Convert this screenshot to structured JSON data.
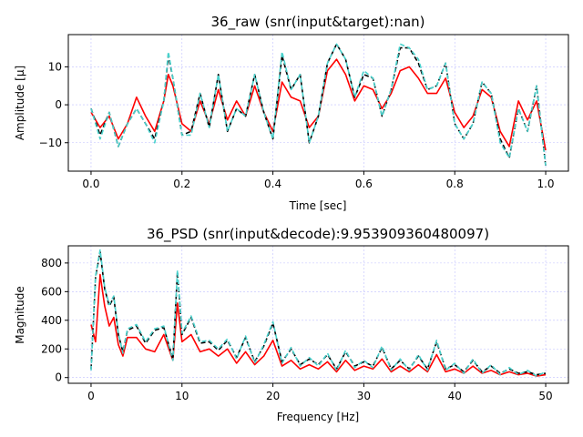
{
  "chart_data": [
    {
      "type": "line",
      "title": "36_raw (snr(input&target):nan)",
      "xlabel": "Time [sec]",
      "ylabel": "Amplitude [μ]",
      "xlim": [
        -0.05,
        1.05
      ],
      "ylim": [
        -17.5,
        18.5
      ],
      "xticks": [
        0.0,
        0.2,
        0.4,
        0.6,
        0.8,
        1.0
      ],
      "xtick_labels": [
        "0.0",
        "0.2",
        "0.4",
        "0.6",
        "0.8",
        "1.0"
      ],
      "yticks": [
        -10,
        0,
        10
      ],
      "ytick_labels": [
        "−10",
        "0",
        "10"
      ],
      "grid": true,
      "series": [
        {
          "color": "#ff0000",
          "style": "solid",
          "x": [
            0.0,
            0.02,
            0.04,
            0.06,
            0.08,
            0.1,
            0.12,
            0.14,
            0.16,
            0.17,
            0.18,
            0.2,
            0.22,
            0.24,
            0.26,
            0.28,
            0.3,
            0.32,
            0.34,
            0.36,
            0.38,
            0.4,
            0.42,
            0.44,
            0.46,
            0.48,
            0.5,
            0.52,
            0.54,
            0.56,
            0.58,
            0.6,
            0.62,
            0.64,
            0.66,
            0.68,
            0.7,
            0.72,
            0.74,
            0.76,
            0.78,
            0.8,
            0.82,
            0.84,
            0.86,
            0.88,
            0.9,
            0.92,
            0.94,
            0.96,
            0.98,
            1.0
          ],
          "y": [
            -2,
            -6,
            -3,
            -9,
            -5,
            2,
            -3,
            -7,
            1,
            8,
            5,
            -5,
            -7,
            1,
            -5,
            4,
            -4,
            1,
            -3,
            5,
            -2,
            -7,
            6,
            2,
            1,
            -6,
            -3,
            9,
            12,
            8,
            1,
            5,
            4,
            -1,
            3,
            9,
            10,
            7,
            3,
            3,
            7,
            -2,
            -6,
            -3,
            4,
            2,
            -7,
            -11,
            1,
            -4,
            1,
            -12
          ]
        },
        {
          "color": "#000000",
          "style": "dashed",
          "x": [
            0.0,
            0.02,
            0.04,
            0.06,
            0.08,
            0.1,
            0.12,
            0.14,
            0.16,
            0.17,
            0.18,
            0.2,
            0.22,
            0.24,
            0.26,
            0.28,
            0.3,
            0.32,
            0.34,
            0.36,
            0.38,
            0.4,
            0.42,
            0.44,
            0.46,
            0.48,
            0.5,
            0.52,
            0.54,
            0.56,
            0.58,
            0.6,
            0.62,
            0.64,
            0.66,
            0.68,
            0.7,
            0.72,
            0.74,
            0.76,
            0.78,
            0.8,
            0.82,
            0.84,
            0.86,
            0.88,
            0.9,
            0.92,
            0.94,
            0.96,
            0.98,
            1.0
          ],
          "y": [
            -1,
            -8,
            -2,
            -11,
            -5,
            -1,
            -5,
            -9,
            1,
            13,
            7,
            -8,
            -7,
            3,
            -6,
            8,
            -7,
            -1,
            -3,
            8,
            -2,
            -9,
            13,
            4,
            8,
            -10,
            -3,
            11,
            16,
            12,
            2,
            8,
            7,
            -3,
            4,
            15,
            15,
            11,
            4,
            5,
            11,
            -5,
            -9,
            -5,
            6,
            3,
            -9,
            -14,
            -1,
            -7,
            5,
            -16
          ]
        },
        {
          "color": "#48d1cc",
          "style": "dashed",
          "x": [
            0.0,
            0.02,
            0.04,
            0.06,
            0.08,
            0.1,
            0.12,
            0.14,
            0.16,
            0.17,
            0.18,
            0.2,
            0.22,
            0.24,
            0.26,
            0.28,
            0.3,
            0.32,
            0.34,
            0.36,
            0.38,
            0.4,
            0.42,
            0.44,
            0.46,
            0.48,
            0.5,
            0.52,
            0.54,
            0.56,
            0.58,
            0.6,
            0.62,
            0.64,
            0.66,
            0.68,
            0.7,
            0.72,
            0.74,
            0.76,
            0.78,
            0.8,
            0.82,
            0.84,
            0.86,
            0.88,
            0.9,
            0.92,
            0.94,
            0.96,
            0.98,
            1.0
          ],
          "y": [
            -1,
            -9,
            -2,
            -11,
            -5,
            -1,
            -5,
            -10,
            1,
            14,
            7,
            -8,
            -8,
            3,
            -6,
            8,
            -7,
            -1,
            -3,
            8,
            -2,
            -9,
            14,
            4,
            8,
            -10,
            -3,
            11,
            16,
            12,
            2,
            9,
            7,
            -3,
            4,
            16,
            15,
            12,
            4,
            5,
            11,
            -5,
            -9,
            -5,
            6,
            3,
            -10,
            -14,
            -1,
            -7,
            5,
            -16
          ]
        }
      ]
    },
    {
      "type": "line",
      "title": "36_PSD (snr(input&decode):9.953909360480097)",
      "xlabel": "Frequency [Hz]",
      "ylabel": "Magnitude",
      "xlim": [
        -2.5,
        52.5
      ],
      "ylim": [
        -40,
        920
      ],
      "xticks": [
        0,
        10,
        20,
        30,
        40,
        50
      ],
      "xtick_labels": [
        "0",
        "10",
        "20",
        "30",
        "40",
        "50"
      ],
      "yticks": [
        0,
        200,
        400,
        600,
        800
      ],
      "ytick_labels": [
        "0",
        "200",
        "400",
        "600",
        "800"
      ],
      "grid": true,
      "series": [
        {
          "color": "#ff0000",
          "style": "solid",
          "x": [
            0,
            0.5,
            1,
            1.5,
            2,
            2.5,
            3,
            3.5,
            4,
            5,
            6,
            7,
            8,
            9,
            9.5,
            10,
            11,
            12,
            13,
            14,
            15,
            16,
            17,
            18,
            19,
            20,
            21,
            22,
            23,
            24,
            25,
            26,
            27,
            28,
            29,
            30,
            31,
            32,
            33,
            34,
            35,
            36,
            37,
            38,
            39,
            40,
            41,
            42,
            43,
            44,
            45,
            46,
            47,
            48,
            49,
            50
          ],
          "y": [
            370,
            250,
            720,
            500,
            360,
            420,
            230,
            150,
            280,
            280,
            200,
            180,
            300,
            120,
            520,
            250,
            300,
            180,
            200,
            150,
            200,
            100,
            180,
            90,
            150,
            260,
            80,
            120,
            60,
            90,
            60,
            110,
            40,
            120,
            50,
            80,
            60,
            130,
            40,
            80,
            40,
            90,
            40,
            160,
            40,
            60,
            30,
            80,
            30,
            50,
            20,
            40,
            20,
            30,
            10,
            20
          ]
        },
        {
          "color": "#000000",
          "style": "dashed",
          "x": [
            0,
            0.5,
            1,
            1.5,
            2,
            2.5,
            3,
            3.5,
            4,
            5,
            6,
            7,
            8,
            9,
            9.5,
            10,
            11,
            12,
            13,
            14,
            15,
            16,
            17,
            18,
            19,
            20,
            21,
            22,
            23,
            24,
            25,
            26,
            27,
            28,
            29,
            30,
            31,
            32,
            33,
            34,
            35,
            36,
            37,
            38,
            39,
            40,
            41,
            42,
            43,
            44,
            45,
            46,
            47,
            48,
            49,
            50
          ],
          "y": [
            60,
            700,
            880,
            620,
            500,
            560,
            300,
            180,
            330,
            360,
            240,
            330,
            350,
            130,
            740,
            300,
            420,
            240,
            250,
            190,
            260,
            140,
            280,
            110,
            220,
            380,
            110,
            200,
            90,
            130,
            90,
            160,
            60,
            180,
            80,
            110,
            80,
            210,
            60,
            120,
            60,
            150,
            60,
            250,
            60,
            90,
            40,
            120,
            40,
            80,
            30,
            60,
            30,
            40,
            20,
            30
          ]
        },
        {
          "color": "#48d1cc",
          "style": "dashed",
          "x": [
            0,
            0.5,
            1,
            1.5,
            2,
            2.5,
            3,
            3.5,
            4,
            5,
            6,
            7,
            8,
            9,
            9.5,
            10,
            11,
            12,
            13,
            14,
            15,
            16,
            17,
            18,
            19,
            20,
            21,
            22,
            23,
            24,
            25,
            26,
            27,
            28,
            29,
            30,
            31,
            32,
            33,
            34,
            35,
            36,
            37,
            38,
            39,
            40,
            41,
            42,
            43,
            44,
            45,
            46,
            47,
            48,
            49,
            50
          ],
          "y": [
            50,
            710,
            890,
            630,
            510,
            570,
            310,
            170,
            340,
            370,
            250,
            340,
            360,
            120,
            750,
            310,
            430,
            250,
            260,
            200,
            270,
            130,
            290,
            100,
            230,
            390,
            100,
            210,
            80,
            140,
            80,
            170,
            50,
            190,
            70,
            120,
            70,
            220,
            50,
            130,
            50,
            160,
            50,
            260,
            50,
            100,
            30,
            130,
            30,
            90,
            20,
            70,
            20,
            50,
            10,
            40
          ]
        }
      ]
    }
  ]
}
